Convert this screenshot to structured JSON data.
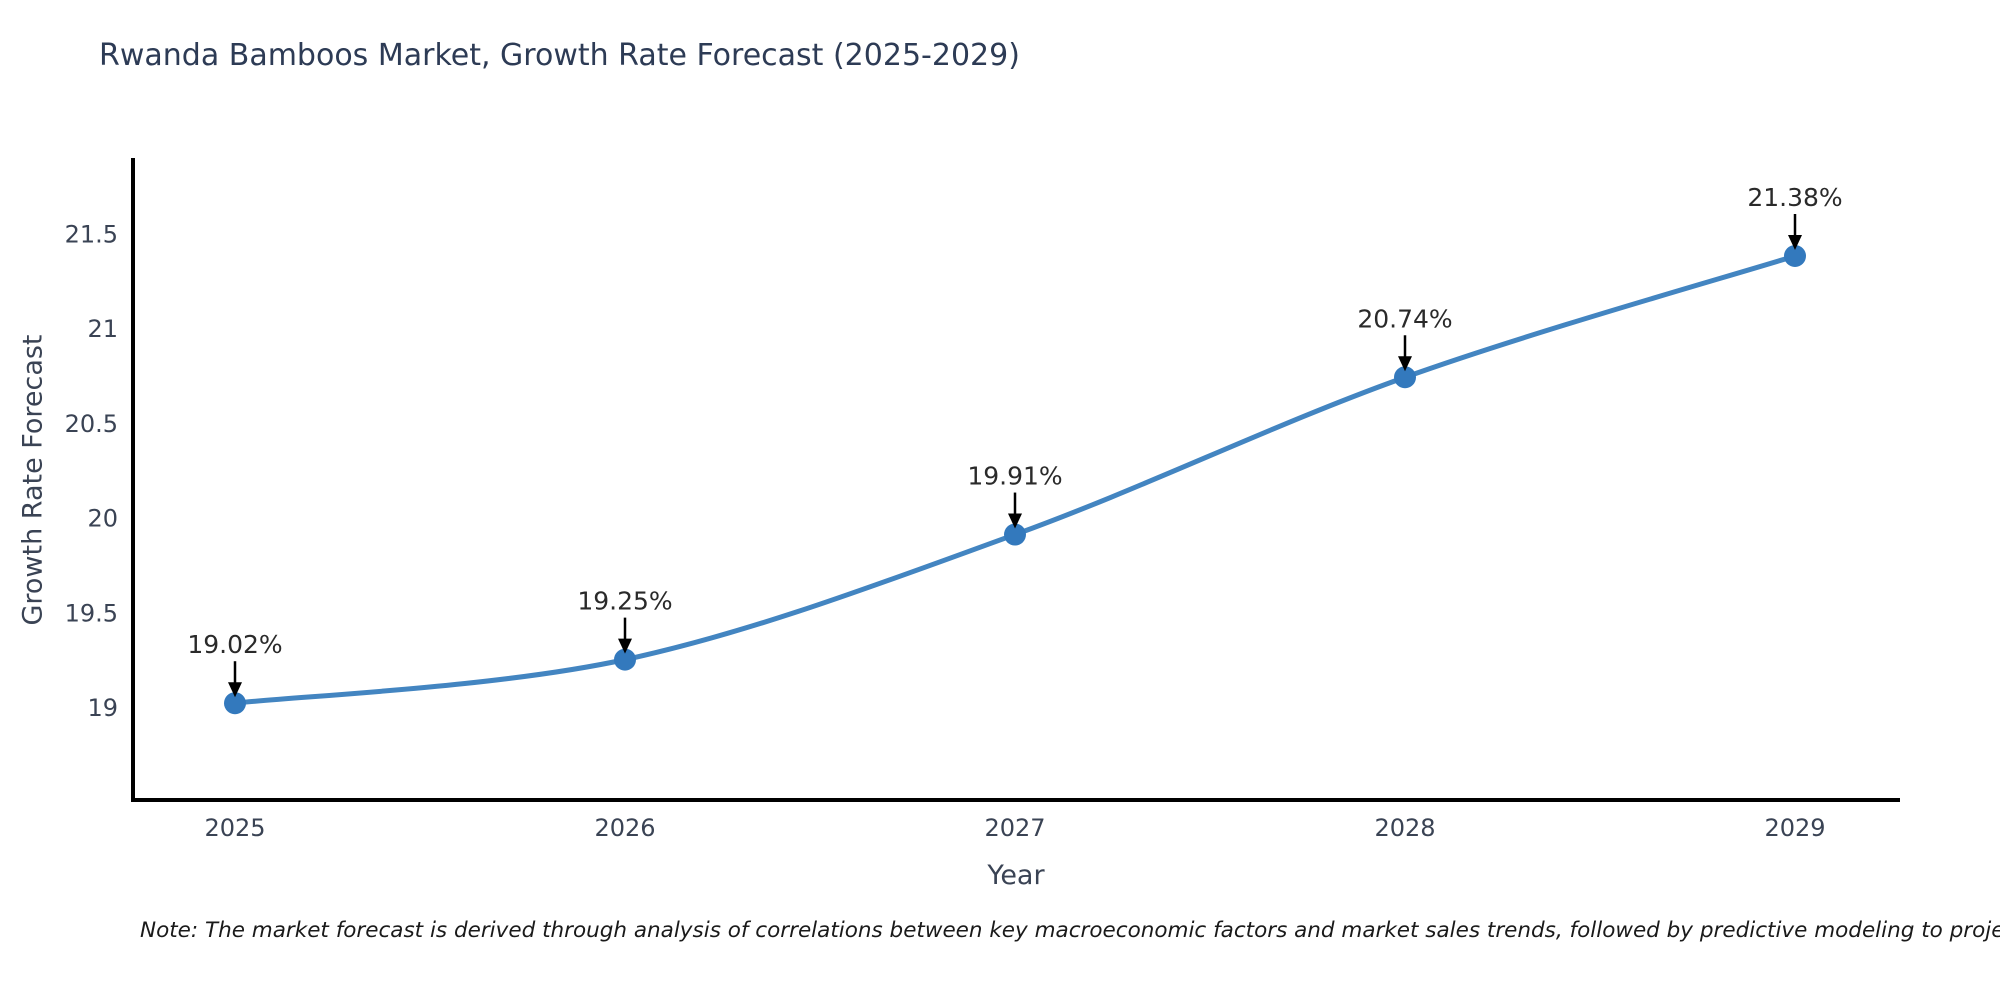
{
  "title": "Rwanda Bamboos Market, Growth Rate Forecast (2025-2029)",
  "note": "Note: The market forecast is derived through analysis of correlations between key macroeconomic factors and market sales trends, followed by predictive modeling to project future sal",
  "chart_data": {
    "type": "line",
    "title": "Rwanda Bamboos Market, Growth Rate Forecast (2025-2029)",
    "x": [
      2025,
      2026,
      2027,
      2028,
      2029
    ],
    "values": [
      19.02,
      19.25,
      19.91,
      20.74,
      21.38
    ],
    "point_labels": [
      "19.02%",
      "19.25%",
      "19.91%",
      "20.74%",
      "21.38%"
    ],
    "xlabel": "Year",
    "ylabel": "Growth Rate Forecast",
    "yticks": [
      19,
      19.5,
      20,
      20.5,
      21,
      21.5
    ],
    "ylim": [
      18.51,
      21.89
    ],
    "grid": false,
    "legend": "none",
    "smooth": true,
    "colors": {
      "line": "#4385c1",
      "marker": "#3379bd",
      "spine": "#000000",
      "tick_text": "#3a4354",
      "annotation_text": "#2a2a2a",
      "annotation_arrow": "#000000",
      "title_text": "#2d3b55"
    }
  }
}
